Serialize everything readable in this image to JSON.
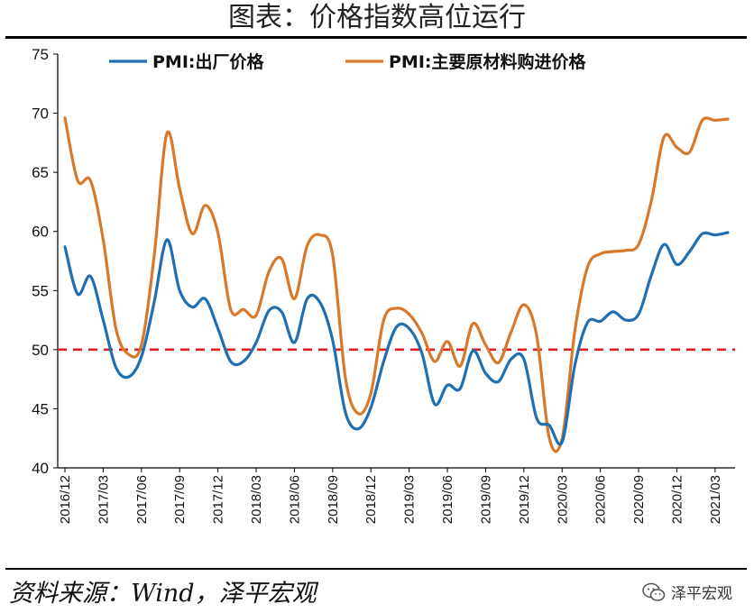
{
  "page": {
    "title": "图表：价格指数高位运行",
    "source": "资料来源：Wind，泽平宏观",
    "watermark": "泽平宏观"
  },
  "colors": {
    "series_blue": "#1f6fb2",
    "series_orange": "#d8782a",
    "reference": "#e02020"
  },
  "icons": {
    "watermark": "wechat-icon"
  },
  "chart_data": {
    "type": "line",
    "y_ticks": [
      40,
      45,
      50,
      55,
      60,
      65,
      70,
      75
    ],
    "ylim": [
      40,
      75
    ],
    "x_tick_labels": [
      "2016/12",
      "2017/03",
      "2017/06",
      "2017/09",
      "2017/12",
      "2018/03",
      "2018/06",
      "2018/09",
      "2018/12",
      "2019/03",
      "2019/06",
      "2019/09",
      "2019/12",
      "2020/03",
      "2020/06",
      "2020/09",
      "2020/12",
      "2021/03"
    ],
    "x": [
      "2016/12",
      "2017/01",
      "2017/02",
      "2017/03",
      "2017/04",
      "2017/05",
      "2017/06",
      "2017/07",
      "2017/08",
      "2017/09",
      "2017/10",
      "2017/11",
      "2017/12",
      "2018/01",
      "2018/02",
      "2018/03",
      "2018/04",
      "2018/05",
      "2018/06",
      "2018/07",
      "2018/08",
      "2018/09",
      "2018/10",
      "2018/11",
      "2018/12",
      "2019/01",
      "2019/02",
      "2019/03",
      "2019/04",
      "2019/05",
      "2019/06",
      "2019/07",
      "2019/08",
      "2019/09",
      "2019/10",
      "2019/11",
      "2019/12",
      "2020/01",
      "2020/02",
      "2020/03",
      "2020/04",
      "2020/05",
      "2020/06",
      "2020/07",
      "2020/08",
      "2020/09",
      "2020/10",
      "2020/11",
      "2020/12",
      "2021/01",
      "2021/02",
      "2021/03",
      "2021/04"
    ],
    "reference_line": 50,
    "legend_position": "top",
    "grid": false,
    "series": [
      {
        "name": "PMI:出厂价格",
        "values": [
          58.7,
          54.7,
          56.2,
          52.5,
          48.5,
          47.7,
          49.4,
          54.0,
          59.3,
          55.0,
          53.6,
          54.3,
          51.8,
          49.0,
          49.0,
          50.6,
          53.3,
          53.2,
          50.6,
          54.3,
          54.0,
          50.8,
          44.7,
          43.3,
          45.1,
          49.0,
          51.9,
          51.8,
          49.7,
          45.4,
          47.0,
          46.7,
          49.9,
          48.0,
          47.3,
          49.2,
          49.2,
          44.2,
          43.6,
          42.2,
          48.7,
          52.3,
          52.4,
          53.2,
          52.5,
          53.0,
          56.3,
          58.9,
          57.2,
          58.3,
          59.8,
          59.7,
          59.9
        ]
      },
      {
        "name": "PMI:主要原材料购进价格",
        "values": [
          69.6,
          64.3,
          64.3,
          59.3,
          51.8,
          49.6,
          50.4,
          57.9,
          68.3,
          63.6,
          59.8,
          62.2,
          59.9,
          53.4,
          53.4,
          52.9,
          56.6,
          57.7,
          54.3,
          58.8,
          59.7,
          58.0,
          47.6,
          44.6,
          46.3,
          52.5,
          53.5,
          53.0,
          51.4,
          49.0,
          50.7,
          48.6,
          52.2,
          50.4,
          48.9,
          51.5,
          53.8,
          51.2,
          42.5,
          42.5,
          51.6,
          57.0,
          58.1,
          58.3,
          58.4,
          58.9,
          62.6,
          68.0,
          67.1,
          66.7,
          69.4,
          69.4,
          69.5
        ]
      }
    ]
  }
}
